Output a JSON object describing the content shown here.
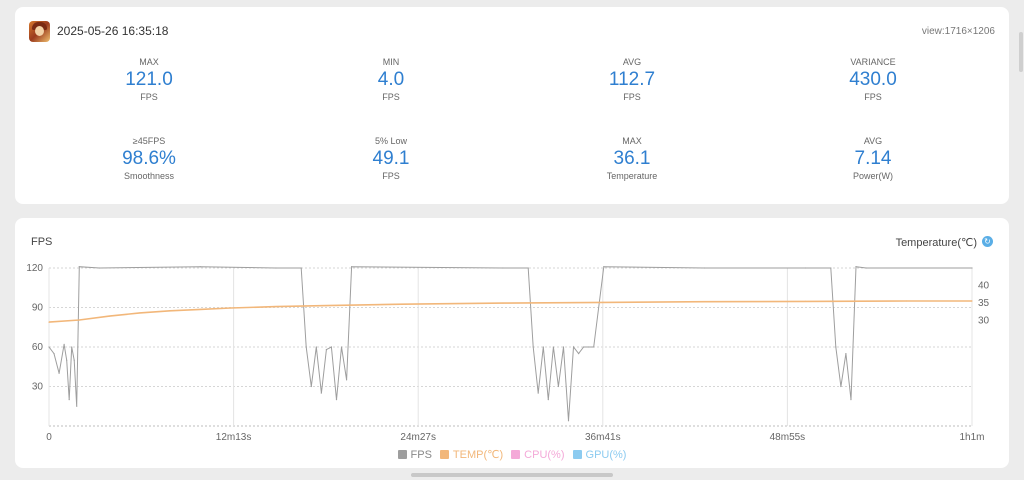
{
  "header": {
    "date": "2025-05-26 16:35:18",
    "view": "view:1716×1206",
    "game_icon": "game-avatar-icon"
  },
  "stats": [
    {
      "label": "MAX",
      "value": "121.0",
      "unit": "FPS"
    },
    {
      "label": "MIN",
      "value": "4.0",
      "unit": "FPS"
    },
    {
      "label": "AVG",
      "value": "112.7",
      "unit": "FPS"
    },
    {
      "label": "VARIANCE",
      "value": "430.0",
      "unit": "FPS"
    },
    {
      "label": "≥45FPS",
      "value": "98.6%",
      "unit": "Smoothness"
    },
    {
      "label": "5% Low",
      "value": "49.1",
      "unit": "FPS"
    },
    {
      "label": "MAX",
      "value": "36.1",
      "unit": "Temperature"
    },
    {
      "label": "AVG",
      "value": "7.14",
      "unit": "Power(W)"
    }
  ],
  "chart": {
    "left_title": "FPS",
    "right_title": "Temperature(℃)",
    "info_icon": "info-icon"
  },
  "colors": {
    "accent": "#2f7fd0",
    "fps": "#9e9e9e",
    "temp": "#f2b77a",
    "cpu": "#f4a9d8",
    "gpu": "#8ccbf0"
  },
  "chart_data": {
    "type": "line",
    "title": "",
    "x_tick_labels": [
      "0",
      "12m13s",
      "24m27s",
      "36m41s",
      "48m55s",
      "1h1m"
    ],
    "x_range_seconds": [
      0,
      3660
    ],
    "y_left": {
      "label": "FPS",
      "ticks": [
        "120",
        "90",
        "60",
        "30"
      ],
      "range": [
        0,
        120
      ]
    },
    "y_right": {
      "label": "Temperature(℃)",
      "ticks": [
        "40",
        "35",
        "30"
      ],
      "range": [
        0,
        45
      ]
    },
    "legend": [
      {
        "name": "FPS",
        "color": "#9e9e9e"
      },
      {
        "name": "TEMP(℃)",
        "color": "#f2b77a"
      },
      {
        "name": "CPU(%)",
        "color": "#f4a9d8"
      },
      {
        "name": "GPU(%)",
        "color": "#8ccbf0"
      }
    ],
    "legend_placement": "bottom",
    "series": [
      {
        "name": "FPS",
        "x": [
          0,
          20,
          40,
          60,
          70,
          80,
          90,
          100,
          110,
          120,
          200,
          600,
          900,
          1000,
          1020,
          1040,
          1060,
          1080,
          1100,
          1120,
          1140,
          1160,
          1180,
          1200,
          1800,
          1900,
          1920,
          1940,
          1960,
          1980,
          2000,
          2020,
          2040,
          2060,
          2080,
          2100,
          2120,
          2140,
          2160,
          2200,
          2600,
          3000,
          3100,
          3120,
          3140,
          3160,
          3180,
          3200,
          3240,
          3660
        ],
        "y": [
          60,
          55,
          40,
          62,
          50,
          20,
          60,
          50,
          15,
          121,
          120,
          121,
          120,
          120,
          60,
          30,
          60,
          25,
          58,
          60,
          20,
          60,
          35,
          121,
          120,
          120,
          60,
          25,
          60,
          20,
          60,
          30,
          60,
          4,
          60,
          55,
          60,
          60,
          60,
          121,
          120,
          120,
          120,
          60,
          30,
          55,
          20,
          121,
          120,
          120
        ]
      },
      {
        "name": "TEMP(℃)",
        "x": [
          0,
          120,
          240,
          360,
          480,
          600,
          720,
          900,
          1100,
          1400,
          1800,
          2200,
          2600,
          3000,
          3400,
          3660
        ],
        "y": [
          29.6,
          30.2,
          31.3,
          32.2,
          32.8,
          33.2,
          33.6,
          34.0,
          34.3,
          34.7,
          35.0,
          35.2,
          35.4,
          35.5,
          35.6,
          35.6
        ]
      }
    ],
    "grid": true
  }
}
